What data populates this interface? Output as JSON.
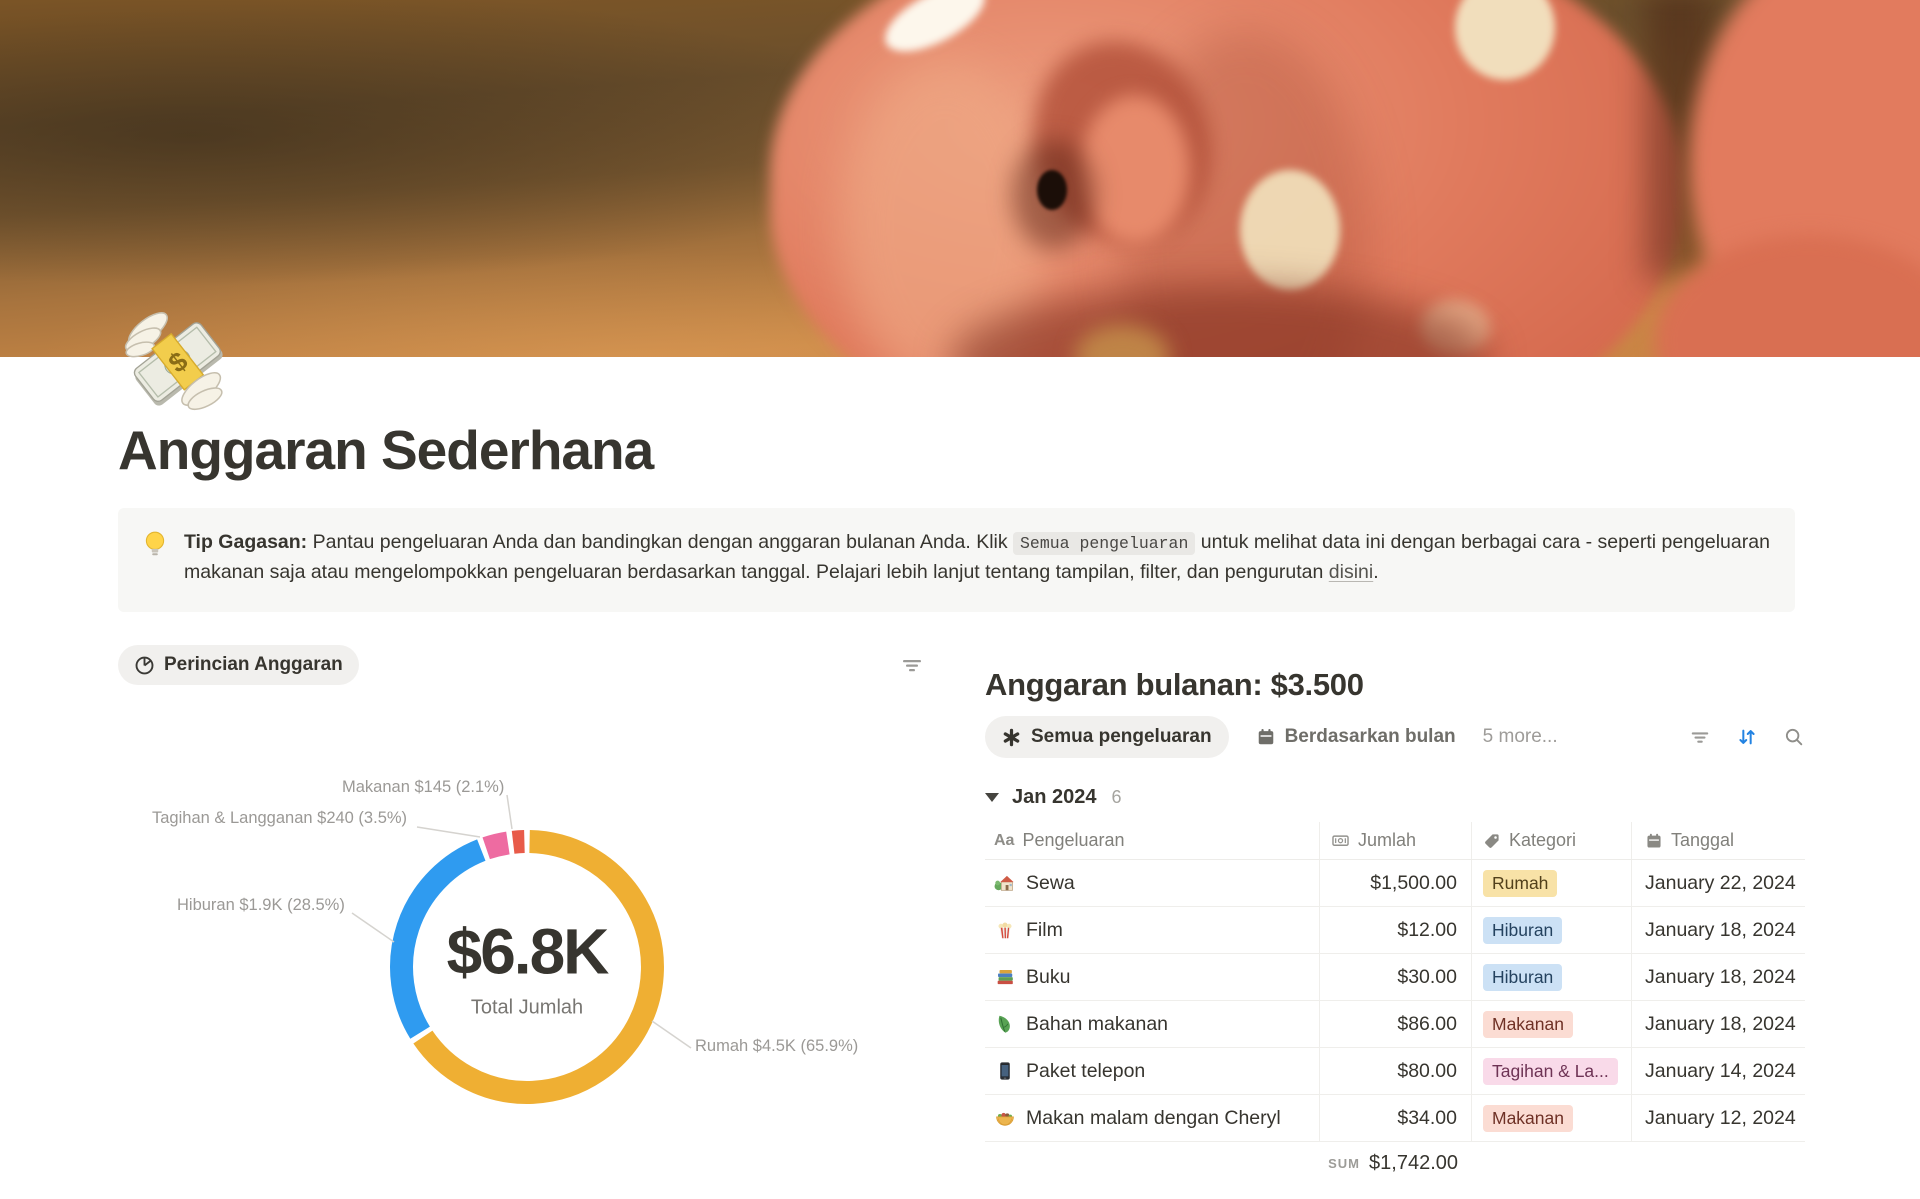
{
  "page": {
    "title": "Anggaran Sederhana",
    "icon": "money-with-wings-emoji"
  },
  "callout": {
    "icon": "light-bulb-emoji",
    "bold": "Tip Gagasan:",
    "text1": " Pantau pengeluaran Anda dan bandingkan dengan anggaran bulanan Anda. Klik ",
    "code": "Semua pengeluaran",
    "text2": " untuk melihat data ini dengan berbagai cara - seperti pengeluaran makanan saja atau mengelompokkan pengeluaran berdasarkan tanggal. Pelajari lebih lanjut tentang tampilan, filter, dan pengurutan  ",
    "link": "disini",
    "text3": "."
  },
  "left_panel": {
    "view_tab": "Perincian Anggaran"
  },
  "chart_data": {
    "type": "pie",
    "style": "donut",
    "title": "Perincian Anggaran",
    "center_value": "$6.8K",
    "center_label": "Total Jumlah",
    "legend_position": "outside-labels",
    "slices": [
      {
        "label": "Rumah",
        "value": 4500,
        "pct": 65.9,
        "display": "Rumah  $4.5K (65.9%)",
        "color": "#EFAF33"
      },
      {
        "label": "Hiburan",
        "value": 1900,
        "pct": 28.5,
        "display": "Hiburan  $1.9K (28.5%)",
        "color": "#2F9BF0"
      },
      {
        "label": "Tagihan & Langganan",
        "value": 240,
        "pct": 3.5,
        "display": "Tagihan & Langganan  $240 (3.5%)",
        "color": "#EE6BA1"
      },
      {
        "label": "Makanan",
        "value": 145,
        "pct": 2.1,
        "display": "Makanan  $145 (2.1%)",
        "color": "#E85B49"
      }
    ]
  },
  "right_panel": {
    "heading": "Anggaran bulanan: $3.500",
    "tabs": [
      {
        "label": "Semua pengeluaran",
        "active": true
      },
      {
        "label": "Berdasarkan bulan",
        "active": false
      },
      {
        "label": "5 more...",
        "active": false
      }
    ],
    "group": {
      "label": "Jan 2024",
      "count": "6"
    },
    "columns": [
      {
        "label": "Pengeluaran",
        "icon": "text-icon"
      },
      {
        "label": "Jumlah",
        "icon": "banknote-icon"
      },
      {
        "label": "Kategori",
        "icon": "tag-icon"
      },
      {
        "label": "Tanggal",
        "icon": "calendar-icon"
      }
    ],
    "rows": [
      {
        "icon": "house-with-garden-emoji",
        "name": "Sewa",
        "amount": "$1,500.00",
        "category": "Rumah",
        "cat_color": "yellow",
        "date": "January 22, 2024"
      },
      {
        "icon": "popcorn-emoji",
        "name": "Film",
        "amount": "$12.00",
        "category": "Hiburan",
        "cat_color": "blue",
        "date": "January 18, 2024"
      },
      {
        "icon": "books-emoji",
        "name": "Buku",
        "amount": "$30.00",
        "category": "Hiburan",
        "cat_color": "blue",
        "date": "January 18, 2024"
      },
      {
        "icon": "leafy-green-emoji",
        "name": "Bahan makanan",
        "amount": "$86.00",
        "category": "Makanan",
        "cat_color": "red",
        "date": "January 18, 2024"
      },
      {
        "icon": "mobile-phone-emoji",
        "name": "Paket telepon",
        "amount": "$80.00",
        "category": "Tagihan & La...",
        "cat_color": "pink",
        "date": "January 14, 2024"
      },
      {
        "icon": "taco-emoji",
        "name": "Makan malam dengan Cheryl",
        "amount": "$34.00",
        "category": "Makanan",
        "cat_color": "red",
        "date": "January 12, 2024"
      }
    ],
    "sum_label": "SUM",
    "sum_value": "$1,742.00",
    "accent_blue": "#2383E2"
  }
}
